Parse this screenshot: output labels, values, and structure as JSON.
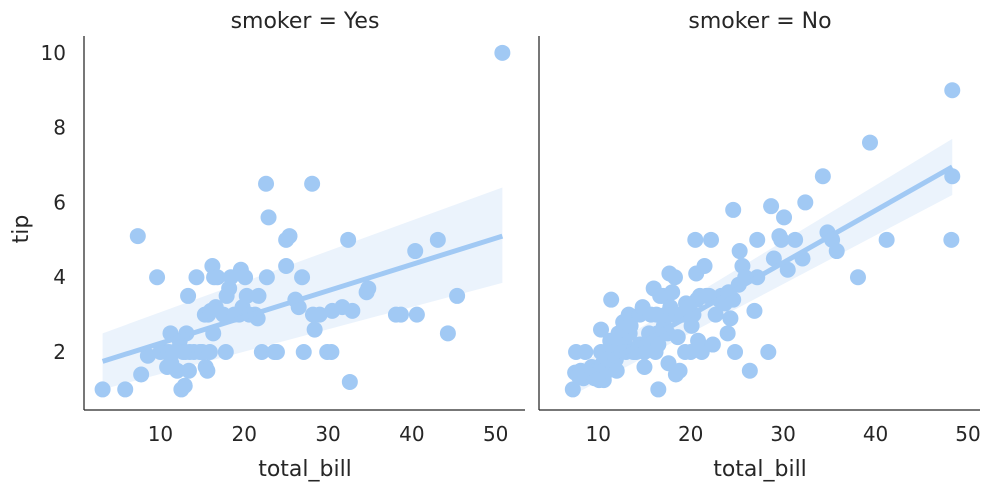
{
  "chart_data": [
    {
      "type": "scatter",
      "title": "smoker = Yes",
      "xlabel": "total_bill",
      "ylabel": "tip",
      "xlim": [
        1.0,
        53.5
      ],
      "ylim": [
        0.45,
        10.45
      ],
      "xticks": [
        "10",
        "20",
        "30",
        "40",
        "50"
      ],
      "yticks": [
        "2",
        "4",
        "6",
        "8",
        "10"
      ],
      "grid": false,
      "point_color": "#a1c9f4",
      "fit_color": "#a1c9f4",
      "band_color": "#ebf3fc",
      "regression": {
        "x": [
          3.1,
          50.8
        ],
        "y": [
          1.75,
          5.1
        ]
      },
      "ci_band": {
        "x": [
          3.1,
          50.8
        ],
        "upper": [
          2.5,
          6.4
        ],
        "lower": [
          1.0,
          3.85
        ]
      },
      "points": [
        [
          3.1,
          1.0
        ],
        [
          5.8,
          1.0
        ],
        [
          7.3,
          5.1
        ],
        [
          7.7,
          1.4
        ],
        [
          8.5,
          1.9
        ],
        [
          9.6,
          4.0
        ],
        [
          10.0,
          2.0
        ],
        [
          10.6,
          2.0
        ],
        [
          10.8,
          1.6
        ],
        [
          11.0,
          2.0
        ],
        [
          11.2,
          2.5
        ],
        [
          11.3,
          1.7
        ],
        [
          11.6,
          2.0
        ],
        [
          12.0,
          1.5
        ],
        [
          12.3,
          2.3
        ],
        [
          12.5,
          1.0
        ],
        [
          12.7,
          2.0
        ],
        [
          12.9,
          1.1
        ],
        [
          13.0,
          2.0
        ],
        [
          13.3,
          3.5
        ],
        [
          13.4,
          1.5
        ],
        [
          13.5,
          2.0
        ],
        [
          13.1,
          2.5
        ],
        [
          14.0,
          2.0
        ],
        [
          14.3,
          4.0
        ],
        [
          14.7,
          2.0
        ],
        [
          15.0,
          2.0
        ],
        [
          15.3,
          3.0
        ],
        [
          15.4,
          1.6
        ],
        [
          15.6,
          1.5
        ],
        [
          15.7,
          3.0
        ],
        [
          15.9,
          2.0
        ],
        [
          16.0,
          3.1
        ],
        [
          16.2,
          4.3
        ],
        [
          16.3,
          2.5
        ],
        [
          16.4,
          4.0
        ],
        [
          16.6,
          3.2
        ],
        [
          16.8,
          4.0
        ],
        [
          17.5,
          3.0
        ],
        [
          17.8,
          2.0
        ],
        [
          17.9,
          3.5
        ],
        [
          18.2,
          3.7
        ],
        [
          18.4,
          4.0
        ],
        [
          18.8,
          3.0
        ],
        [
          19.4,
          3.0
        ],
        [
          19.6,
          4.2
        ],
        [
          19.8,
          3.2
        ],
        [
          20.1,
          4.0
        ],
        [
          20.3,
          3.5
        ],
        [
          20.6,
          3.0
        ],
        [
          21.3,
          3.0
        ],
        [
          21.6,
          2.9
        ],
        [
          21.7,
          3.5
        ],
        [
          22.1,
          2.0
        ],
        [
          22.7,
          4.0
        ],
        [
          22.6,
          6.5
        ],
        [
          22.9,
          5.6
        ],
        [
          23.6,
          2.0
        ],
        [
          23.9,
          2.0
        ],
        [
          25.0,
          4.3
        ],
        [
          25.0,
          5.0
        ],
        [
          25.4,
          5.1
        ],
        [
          26.1,
          3.4
        ],
        [
          26.5,
          3.2
        ],
        [
          26.9,
          4.0
        ],
        [
          27.1,
          2.0
        ],
        [
          28.1,
          6.5
        ],
        [
          28.2,
          3.0
        ],
        [
          28.4,
          2.6
        ],
        [
          29.0,
          3.0
        ],
        [
          29.9,
          2.0
        ],
        [
          30.4,
          2.0
        ],
        [
          30.5,
          3.1
        ],
        [
          31.7,
          3.2
        ],
        [
          32.4,
          5.0
        ],
        [
          32.6,
          1.2
        ],
        [
          32.9,
          3.1
        ],
        [
          34.6,
          3.6
        ],
        [
          34.8,
          3.7
        ],
        [
          38.1,
          3.0
        ],
        [
          38.7,
          3.0
        ],
        [
          40.4,
          4.7
        ],
        [
          40.6,
          3.0
        ],
        [
          43.1,
          5.0
        ],
        [
          44.3,
          2.5
        ],
        [
          45.4,
          3.5
        ],
        [
          50.8,
          10.0
        ]
      ]
    },
    {
      "type": "scatter",
      "title": "smoker = No",
      "xlabel": "total_bill",
      "ylabel": "",
      "xlim": [
        3.7,
        51.3
      ],
      "ylim": [
        0.45,
        10.45
      ],
      "xticks": [
        "10",
        "20",
        "30",
        "40",
        "50"
      ],
      "yticks": [
        "2",
        "4",
        "6",
        "8",
        "10"
      ],
      "grid": false,
      "point_color": "#a1c9f4",
      "fit_color": "#a1c9f4",
      "band_color": "#ebf3fc",
      "regression": {
        "x": [
          7.25,
          48.3
        ],
        "y": [
          1.2,
          6.95
        ]
      },
      "ci_band": {
        "x": [
          7.25,
          48.3
        ],
        "upper": [
          1.55,
          7.7
        ],
        "lower": [
          0.85,
          6.2
        ]
      },
      "points": [
        [
          7.25,
          1.0
        ],
        [
          7.5,
          1.45
        ],
        [
          7.6,
          2.0
        ],
        [
          8.1,
          1.5
        ],
        [
          8.4,
          1.3
        ],
        [
          8.6,
          2.0
        ],
        [
          8.8,
          1.4
        ],
        [
          9.0,
          1.5
        ],
        [
          9.3,
          1.6
        ],
        [
          9.6,
          1.3
        ],
        [
          9.8,
          1.5
        ],
        [
          10.1,
          1.25
        ],
        [
          10.3,
          2.0
        ],
        [
          10.3,
          1.5
        ],
        [
          10.3,
          2.6
        ],
        [
          10.5,
          1.7
        ],
        [
          10.6,
          1.25
        ],
        [
          11.0,
          1.5
        ],
        [
          11.0,
          1.8
        ],
        [
          11.3,
          2.3
        ],
        [
          11.4,
          3.4
        ],
        [
          11.7,
          2.0
        ],
        [
          11.9,
          1.8
        ],
        [
          12.0,
          1.5
        ],
        [
          12.2,
          2.5
        ],
        [
          12.5,
          2.0
        ],
        [
          12.7,
          2.8
        ],
        [
          12.9,
          2.2
        ],
        [
          13.0,
          2.0
        ],
        [
          13.3,
          3.0
        ],
        [
          13.4,
          2.5
        ],
        [
          13.5,
          2.7
        ],
        [
          13.8,
          2.0
        ],
        [
          14.1,
          2.0
        ],
        [
          14.5,
          3.0
        ],
        [
          14.5,
          2.2
        ],
        [
          14.8,
          3.2
        ],
        [
          15.0,
          2.0
        ],
        [
          15.0,
          1.6
        ],
        [
          15.5,
          2.5
        ],
        [
          15.7,
          3.0
        ],
        [
          15.8,
          2.2
        ],
        [
          16.0,
          3.7
        ],
        [
          16.2,
          2.0
        ],
        [
          16.3,
          3.0
        ],
        [
          16.4,
          2.5
        ],
        [
          16.5,
          2.2
        ],
        [
          16.5,
          1.0
        ],
        [
          16.7,
          3.5
        ],
        [
          17.0,
          3.5
        ],
        [
          17.1,
          2.7
        ],
        [
          17.3,
          3.0
        ],
        [
          17.5,
          2.5
        ],
        [
          17.6,
          1.7
        ],
        [
          17.7,
          4.1
        ],
        [
          17.8,
          3.2
        ],
        [
          17.9,
          3.0
        ],
        [
          18.0,
          3.6
        ],
        [
          18.1,
          3.0
        ],
        [
          18.3,
          4.0
        ],
        [
          18.4,
          1.4
        ],
        [
          18.5,
          3.0
        ],
        [
          18.6,
          2.4
        ],
        [
          18.8,
          1.5
        ],
        [
          19.1,
          3.0
        ],
        [
          19.3,
          3.0
        ],
        [
          19.4,
          2.0
        ],
        [
          19.5,
          3.3
        ],
        [
          19.8,
          3.2
        ],
        [
          20.0,
          2.0
        ],
        [
          20.1,
          2.7
        ],
        [
          20.3,
          3.0
        ],
        [
          20.5,
          5.0
        ],
        [
          20.6,
          4.1
        ],
        [
          20.7,
          3.4
        ],
        [
          20.8,
          2.3
        ],
        [
          21.0,
          3.5
        ],
        [
          21.2,
          2.0
        ],
        [
          21.5,
          4.3
        ],
        [
          21.7,
          3.5
        ],
        [
          22.0,
          3.5
        ],
        [
          22.2,
          5.0
        ],
        [
          22.4,
          2.2
        ],
        [
          22.7,
          3.0
        ],
        [
          23.1,
          3.4
        ],
        [
          23.3,
          3.5
        ],
        [
          23.7,
          3.3
        ],
        [
          24.0,
          2.5
        ],
        [
          24.1,
          3.6
        ],
        [
          24.3,
          2.9
        ],
        [
          24.6,
          3.4
        ],
        [
          24.6,
          5.8
        ],
        [
          24.8,
          2.0
        ],
        [
          25.2,
          3.8
        ],
        [
          25.3,
          4.7
        ],
        [
          25.6,
          4.3
        ],
        [
          25.9,
          4.0
        ],
        [
          26.4,
          1.5
        ],
        [
          26.9,
          3.1
        ],
        [
          27.2,
          4.0
        ],
        [
          27.2,
          5.0
        ],
        [
          28.4,
          2.0
        ],
        [
          28.7,
          5.9
        ],
        [
          29.0,
          4.5
        ],
        [
          29.6,
          5.1
        ],
        [
          29.8,
          5.0
        ],
        [
          30.1,
          5.6
        ],
        [
          30.5,
          4.2
        ],
        [
          31.3,
          5.0
        ],
        [
          32.1,
          4.5
        ],
        [
          32.4,
          6.0
        ],
        [
          34.3,
          6.7
        ],
        [
          34.8,
          5.2
        ],
        [
          35.3,
          5.0
        ],
        [
          35.8,
          4.7
        ],
        [
          38.1,
          4.0
        ],
        [
          39.4,
          7.6
        ],
        [
          41.2,
          5.0
        ],
        [
          48.2,
          5.0
        ],
        [
          48.3,
          9.0
        ],
        [
          48.3,
          6.7
        ]
      ]
    }
  ]
}
